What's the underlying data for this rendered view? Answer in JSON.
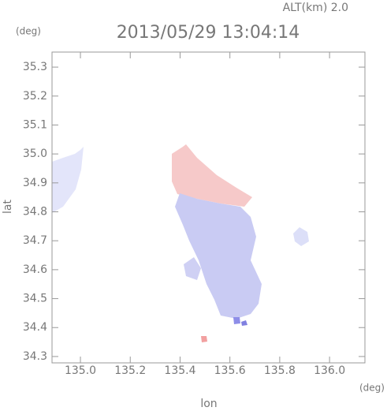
{
  "chart_data": {
    "type": "map",
    "title": "2013/05/29 13:04:14",
    "annotation": "ALT(km) 2.0",
    "y_unit": "(deg)",
    "x_unit": "(deg)",
    "xlabel": "lon",
    "ylabel": "lat",
    "xlim": [
      134.886,
      136.142
    ],
    "ylim": [
      34.278,
      35.352
    ],
    "xticks": [
      {
        "value": 135,
        "label": "135.0"
      },
      135.2,
      135.4,
      135.6,
      135.8,
      {
        "value": 136,
        "label": "136.0"
      }
    ],
    "yticks": [
      35.3,
      35.2,
      35.1,
      {
        "value": 35,
        "label": "35.0"
      },
      34.9,
      34.8,
      34.7,
      34.6,
      34.5,
      34.4,
      34.3
    ]
  }
}
